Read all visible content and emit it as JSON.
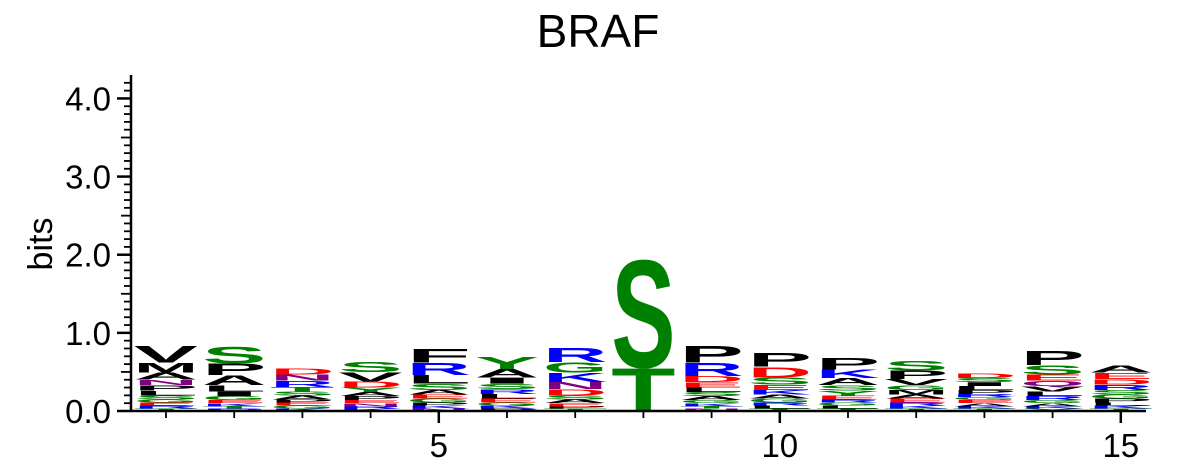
{
  "chart_data": {
    "type": "sequence_logo",
    "title": "BRAF",
    "ylabel": "bits",
    "xlabel": "",
    "ylim": [
      0,
      4.3
    ],
    "yticks": [
      "0.0",
      "1.0",
      "2.0",
      "3.0",
      "4.0"
    ],
    "xticks": [
      5,
      10,
      15
    ],
    "positions": [
      1,
      2,
      3,
      4,
      5,
      6,
      7,
      8,
      9,
      10,
      11,
      12,
      13,
      14,
      15
    ],
    "colors": {
      "S": "#008000",
      "T": "#008000",
      "G": "#008000",
      "Y": "#008000",
      "C": "#008000",
      "R": "#0000ff",
      "K": "#0000ff",
      "H": "#0000ff",
      "D": "#ff0000",
      "E": "#ff0000",
      "N": "#800080",
      "Q": "#800080",
      "A": "#000000",
      "V": "#000000",
      "L": "#000000",
      "I": "#000000",
      "P": "#000000",
      "F": "#000000",
      "M": "#000000",
      "W": "#000000"
    },
    "stacks": [
      [
        {
          "aa": "V",
          "h": 0.22
        },
        {
          "aa": "M",
          "h": 0.13
        },
        {
          "aa": "A",
          "h": 0.09
        },
        {
          "aa": "N",
          "h": 0.07
        },
        {
          "aa": "P",
          "h": 0.07
        },
        {
          "aa": "L",
          "h": 0.06
        },
        {
          "aa": "S",
          "h": 0.05
        },
        {
          "aa": "G",
          "h": 0.04
        },
        {
          "aa": "E",
          "h": 0.04
        },
        {
          "aa": "R",
          "h": 0.04
        },
        {
          "aa": "T",
          "h": 0.03
        }
      ],
      [
        {
          "aa": "S",
          "h": 0.22
        },
        {
          "aa": "P",
          "h": 0.15
        },
        {
          "aa": "A",
          "h": 0.13
        },
        {
          "aa": "L",
          "h": 0.08
        },
        {
          "aa": "I",
          "h": 0.06
        },
        {
          "aa": "G",
          "h": 0.05
        },
        {
          "aa": "E",
          "h": 0.04
        },
        {
          "aa": "K",
          "h": 0.04
        },
        {
          "aa": "T",
          "h": 0.03
        },
        {
          "aa": "R",
          "h": 0.03
        }
      ],
      [
        {
          "aa": "D",
          "h": 0.08
        },
        {
          "aa": "N",
          "h": 0.08
        },
        {
          "aa": "R",
          "h": 0.08
        },
        {
          "aa": "T",
          "h": 0.06
        },
        {
          "aa": "S",
          "h": 0.05
        },
        {
          "aa": "A",
          "h": 0.05
        },
        {
          "aa": "P",
          "h": 0.04
        },
        {
          "aa": "E",
          "h": 0.04
        },
        {
          "aa": "G",
          "h": 0.04
        },
        {
          "aa": "K",
          "h": 0.03
        }
      ],
      [
        {
          "aa": "S",
          "h": 0.14
        },
        {
          "aa": "V",
          "h": 0.12
        },
        {
          "aa": "D",
          "h": 0.08
        },
        {
          "aa": "Y",
          "h": 0.06
        },
        {
          "aa": "A",
          "h": 0.05
        },
        {
          "aa": "P",
          "h": 0.05
        },
        {
          "aa": "E",
          "h": 0.04
        },
        {
          "aa": "N",
          "h": 0.04
        },
        {
          "aa": "R",
          "h": 0.03
        },
        {
          "aa": "K",
          "h": 0.03
        }
      ],
      [
        {
          "aa": "F",
          "h": 0.18
        },
        {
          "aa": "R",
          "h": 0.16
        },
        {
          "aa": "L",
          "h": 0.11
        },
        {
          "aa": "S",
          "h": 0.08
        },
        {
          "aa": "A",
          "h": 0.06
        },
        {
          "aa": "E",
          "h": 0.05
        },
        {
          "aa": "G",
          "h": 0.05
        },
        {
          "aa": "P",
          "h": 0.04
        },
        {
          "aa": "K",
          "h": 0.04
        },
        {
          "aa": "N",
          "h": 0.03
        }
      ],
      [
        {
          "aa": "Y",
          "h": 0.16
        },
        {
          "aa": "A",
          "h": 0.11
        },
        {
          "aa": "I",
          "h": 0.08
        },
        {
          "aa": "S",
          "h": 0.07
        },
        {
          "aa": "R",
          "h": 0.06
        },
        {
          "aa": "L",
          "h": 0.06
        },
        {
          "aa": "E",
          "h": 0.05
        },
        {
          "aa": "G",
          "h": 0.04
        },
        {
          "aa": "K",
          "h": 0.04
        },
        {
          "aa": "P",
          "h": 0.03
        }
      ],
      [
        {
          "aa": "R",
          "h": 0.19
        },
        {
          "aa": "G",
          "h": 0.14
        },
        {
          "aa": "K",
          "h": 0.12
        },
        {
          "aa": "N",
          "h": 0.09
        },
        {
          "aa": "D",
          "h": 0.08
        },
        {
          "aa": "S",
          "h": 0.05
        },
        {
          "aa": "A",
          "h": 0.05
        },
        {
          "aa": "E",
          "h": 0.04
        },
        {
          "aa": "P",
          "h": 0.03
        },
        {
          "aa": "T",
          "h": 0.03
        }
      ],
      [
        {
          "aa": "S",
          "h": 1.42
        },
        {
          "aa": "T",
          "h": 0.56
        }
      ],
      [
        {
          "aa": "P",
          "h": 0.22
        },
        {
          "aa": "R",
          "h": 0.17
        },
        {
          "aa": "D",
          "h": 0.08
        },
        {
          "aa": "E",
          "h": 0.07
        },
        {
          "aa": "L",
          "h": 0.06
        },
        {
          "aa": "S",
          "h": 0.05
        },
        {
          "aa": "A",
          "h": 0.05
        },
        {
          "aa": "G",
          "h": 0.04
        },
        {
          "aa": "K",
          "h": 0.04
        },
        {
          "aa": "T",
          "h": 0.03
        },
        {
          "aa": "N",
          "h": 0.03
        }
      ],
      [
        {
          "aa": "P",
          "h": 0.18
        },
        {
          "aa": "D",
          "h": 0.14
        },
        {
          "aa": "S",
          "h": 0.09
        },
        {
          "aa": "E",
          "h": 0.07
        },
        {
          "aa": "K",
          "h": 0.06
        },
        {
          "aa": "A",
          "h": 0.05
        },
        {
          "aa": "G",
          "h": 0.05
        },
        {
          "aa": "R",
          "h": 0.04
        },
        {
          "aa": "L",
          "h": 0.04
        },
        {
          "aa": "T",
          "h": 0.03
        }
      ],
      [
        {
          "aa": "P",
          "h": 0.15
        },
        {
          "aa": "K",
          "h": 0.11
        },
        {
          "aa": "A",
          "h": 0.09
        },
        {
          "aa": "S",
          "h": 0.07
        },
        {
          "aa": "Y",
          "h": 0.06
        },
        {
          "aa": "E",
          "h": 0.05
        },
        {
          "aa": "R",
          "h": 0.04
        },
        {
          "aa": "G",
          "h": 0.04
        },
        {
          "aa": "L",
          "h": 0.04
        },
        {
          "aa": "T",
          "h": 0.03
        }
      ],
      [
        {
          "aa": "S",
          "h": 0.13
        },
        {
          "aa": "P",
          "h": 0.11
        },
        {
          "aa": "V",
          "h": 0.08
        },
        {
          "aa": "G",
          "h": 0.06
        },
        {
          "aa": "M",
          "h": 0.06
        },
        {
          "aa": "A",
          "h": 0.05
        },
        {
          "aa": "E",
          "h": 0.05
        },
        {
          "aa": "R",
          "h": 0.04
        },
        {
          "aa": "K",
          "h": 0.04
        },
        {
          "aa": "T",
          "h": 0.03
        }
      ],
      [
        {
          "aa": "D",
          "h": 0.06
        },
        {
          "aa": "S",
          "h": 0.05
        },
        {
          "aa": "I",
          "h": 0.05
        },
        {
          "aa": "L",
          "h": 0.05
        },
        {
          "aa": "P",
          "h": 0.05
        },
        {
          "aa": "R",
          "h": 0.04
        },
        {
          "aa": "G",
          "h": 0.04
        },
        {
          "aa": "E",
          "h": 0.04
        },
        {
          "aa": "A",
          "h": 0.04
        },
        {
          "aa": "K",
          "h": 0.03
        },
        {
          "aa": "T",
          "h": 0.03
        }
      ],
      [
        {
          "aa": "P",
          "h": 0.19
        },
        {
          "aa": "S",
          "h": 0.12
        },
        {
          "aa": "E",
          "h": 0.08
        },
        {
          "aa": "Q",
          "h": 0.07
        },
        {
          "aa": "V",
          "h": 0.07
        },
        {
          "aa": "L",
          "h": 0.06
        },
        {
          "aa": "R",
          "h": 0.05
        },
        {
          "aa": "G",
          "h": 0.04
        },
        {
          "aa": "A",
          "h": 0.04
        },
        {
          "aa": "K",
          "h": 0.03
        },
        {
          "aa": "Y",
          "h": 0.03
        }
      ],
      [
        {
          "aa": "A",
          "h": 0.09
        },
        {
          "aa": "E",
          "h": 0.08
        },
        {
          "aa": "D",
          "h": 0.07
        },
        {
          "aa": "R",
          "h": 0.07
        },
        {
          "aa": "S",
          "h": 0.06
        },
        {
          "aa": "G",
          "h": 0.05
        },
        {
          "aa": "P",
          "h": 0.05
        },
        {
          "aa": "L",
          "h": 0.04
        },
        {
          "aa": "K",
          "h": 0.04
        },
        {
          "aa": "T",
          "h": 0.03
        }
      ]
    ]
  }
}
